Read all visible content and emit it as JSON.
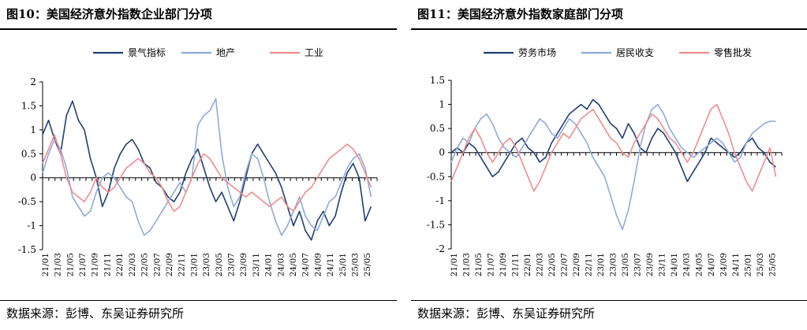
{
  "panels": [
    {
      "title": "图10：美国经济意外指数企业部门分项",
      "source": "数据来源：彭博、东吴证券研究所"
    },
    {
      "title": "图11：美国经济意外指数家庭部门分项",
      "source": "数据来源：彭博、东吴证券研究所"
    }
  ],
  "chart_data": [
    {
      "type": "line",
      "title": "",
      "xlabel": "",
      "ylabel": "",
      "ylim": [
        -1.5,
        2
      ],
      "yticks": [
        "2",
        "1.5",
        "1",
        "0.5",
        "0",
        "-0.5",
        "-1",
        "-1.5"
      ],
      "ytick_values": [
        2,
        1.5,
        1,
        0.5,
        0,
        -0.5,
        -1,
        -1.5
      ],
      "x_tick_labels": [
        "21/01",
        "21/03",
        "21/05",
        "21/07",
        "21/09",
        "21/11",
        "22/01",
        "22/03",
        "22/05",
        "22/07",
        "22/09",
        "22/11",
        "23/01",
        "23/03",
        "23/05",
        "23/07",
        "23/09",
        "23/11",
        "24/01",
        "24/03",
        "24/05",
        "24/07",
        "24/09",
        "24/11",
        "25/01",
        "25/03",
        "25/05"
      ],
      "x_range": [
        0,
        56
      ],
      "legend_position": "top-center",
      "grid": false,
      "series": [
        {
          "name": "景气指标",
          "color": "#1f3f73",
          "x": [
            0,
            1,
            2,
            3,
            4,
            5,
            6,
            7,
            8,
            9,
            10,
            11,
            12,
            13,
            14,
            15,
            16,
            17,
            18,
            19,
            20,
            21,
            22,
            23,
            24,
            25,
            26,
            27,
            28,
            29,
            30,
            31,
            32,
            33,
            34,
            35,
            36,
            37,
            38,
            39,
            40,
            41,
            42,
            43,
            44,
            45,
            46,
            47,
            48,
            49,
            50,
            51,
            52,
            53,
            54,
            55
          ],
          "y": [
            0.9,
            1.2,
            0.8,
            0.5,
            1.3,
            1.6,
            1.2,
            1.0,
            0.4,
            0.0,
            -0.6,
            -0.3,
            0.2,
            0.5,
            0.7,
            0.8,
            0.6,
            0.3,
            0.2,
            -0.1,
            -0.2,
            -0.4,
            -0.5,
            -0.3,
            0.1,
            0.4,
            0.6,
            0.2,
            -0.2,
            -0.5,
            -0.3,
            -0.6,
            -0.9,
            -0.5,
            0.0,
            0.5,
            0.7,
            0.5,
            0.3,
            0.1,
            -0.2,
            -0.6,
            -1.0,
            -0.7,
            -1.1,
            -1.3,
            -0.9,
            -0.7,
            -1.0,
            -0.8,
            -0.3,
            0.1,
            0.3,
            0.0,
            -0.9,
            -0.6
          ]
        },
        {
          "name": "地产",
          "color": "#8eaadc",
          "x": [
            0,
            1,
            2,
            3,
            4,
            5,
            6,
            7,
            8,
            9,
            10,
            11,
            12,
            13,
            14,
            15,
            16,
            17,
            18,
            19,
            20,
            21,
            22,
            23,
            24,
            25,
            26,
            27,
            28,
            29,
            30,
            31,
            32,
            33,
            34,
            35,
            36,
            37,
            38,
            39,
            40,
            41,
            42,
            43,
            44,
            45,
            46,
            47,
            48,
            49,
            50,
            51,
            52,
            53,
            54,
            55
          ],
          "y": [
            0.1,
            0.5,
            0.8,
            0.6,
            0.2,
            -0.4,
            -0.6,
            -0.8,
            -0.7,
            -0.3,
            0.0,
            0.1,
            0.0,
            -0.2,
            -0.4,
            -0.5,
            -0.9,
            -1.2,
            -1.1,
            -0.9,
            -0.7,
            -0.5,
            -0.3,
            -0.1,
            -0.3,
            0.0,
            1.1,
            1.3,
            1.4,
            1.65,
            0.5,
            -0.2,
            -0.6,
            -0.4,
            0.1,
            0.5,
            0.4,
            0.0,
            -0.5,
            -0.9,
            -1.2,
            -1.0,
            -0.7,
            -0.4,
            -0.8,
            -1.0,
            -1.1,
            -0.8,
            -0.5,
            -0.4,
            -0.1,
            0.2,
            0.4,
            0.5,
            0.2,
            -0.4
          ]
        },
        {
          "name": "工业",
          "color": "#f08c8c",
          "x": [
            0,
            1,
            2,
            3,
            4,
            5,
            6,
            7,
            8,
            9,
            10,
            11,
            12,
            13,
            14,
            15,
            16,
            17,
            18,
            19,
            20,
            21,
            22,
            23,
            24,
            25,
            26,
            27,
            28,
            29,
            30,
            31,
            32,
            33,
            34,
            35,
            36,
            37,
            38,
            39,
            40,
            41,
            42,
            43,
            44,
            45,
            46,
            47,
            48,
            49,
            50,
            51,
            52,
            53,
            54,
            55
          ],
          "y": [
            0.3,
            0.6,
            0.9,
            0.5,
            0.0,
            -0.3,
            -0.4,
            -0.5,
            -0.3,
            0.0,
            -0.2,
            -0.3,
            -0.2,
            0.0,
            0.2,
            0.3,
            0.4,
            0.3,
            0.1,
            0.0,
            -0.2,
            -0.5,
            -0.7,
            -0.6,
            -0.3,
            0.0,
            0.3,
            0.5,
            0.4,
            0.2,
            0.0,
            -0.1,
            -0.2,
            -0.3,
            -0.4,
            -0.3,
            -0.4,
            -0.5,
            -0.6,
            -0.5,
            -0.4,
            -0.6,
            -0.7,
            -0.5,
            -0.3,
            -0.2,
            0.0,
            0.2,
            0.4,
            0.5,
            0.6,
            0.7,
            0.6,
            0.4,
            0.1,
            -0.2
          ]
        }
      ]
    },
    {
      "type": "line",
      "title": "",
      "xlabel": "",
      "ylabel": "",
      "ylim": [
        -2,
        1.5
      ],
      "yticks": [
        "1.5",
        "1",
        "0.5",
        "0",
        "-0.5",
        "-1",
        "-1.5",
        "-2"
      ],
      "ytick_values": [
        1.5,
        1,
        0.5,
        0,
        -0.5,
        -1,
        -1.5,
        -2
      ],
      "x_tick_labels": [
        "21/01",
        "21/03",
        "21/05",
        "21/07",
        "21/09",
        "21/11",
        "22/01",
        "22/03",
        "22/05",
        "22/07",
        "22/09",
        "22/11",
        "23/01",
        "23/03",
        "23/05",
        "23/07",
        "23/09",
        "23/11",
        "24/01",
        "24/03",
        "24/05",
        "24/07",
        "24/09",
        "24/11",
        "25/01",
        "25/03",
        "25/05"
      ],
      "x_range": [
        0,
        56
      ],
      "legend_position": "top-center",
      "grid": false,
      "series": [
        {
          "name": "劳务市场",
          "color": "#1f3f73",
          "x": [
            0,
            1,
            2,
            3,
            4,
            5,
            6,
            7,
            8,
            9,
            10,
            11,
            12,
            13,
            14,
            15,
            16,
            17,
            18,
            19,
            20,
            21,
            22,
            23,
            24,
            25,
            26,
            27,
            28,
            29,
            30,
            31,
            32,
            33,
            34,
            35,
            36,
            37,
            38,
            39,
            40,
            41,
            42,
            43,
            44,
            45,
            46,
            47,
            48,
            49,
            50,
            51,
            52,
            53,
            54,
            55
          ],
          "y": [
            0.0,
            0.1,
            0.0,
            0.2,
            0.1,
            -0.1,
            -0.3,
            -0.5,
            -0.4,
            -0.2,
            0.0,
            0.2,
            0.3,
            0.1,
            0.0,
            -0.2,
            -0.1,
            0.2,
            0.4,
            0.6,
            0.8,
            0.9,
            1.0,
            0.9,
            1.1,
            1.0,
            0.8,
            0.6,
            0.5,
            0.3,
            0.6,
            0.4,
            0.1,
            0.0,
            0.3,
            0.5,
            0.4,
            0.2,
            0.0,
            -0.3,
            -0.6,
            -0.4,
            -0.2,
            0.0,
            0.3,
            0.2,
            0.1,
            0.0,
            -0.1,
            0.0,
            0.2,
            0.3,
            0.1,
            0.0,
            -0.2,
            -0.3
          ]
        },
        {
          "name": "居民收支",
          "color": "#8eaadc",
          "x": [
            0,
            1,
            2,
            3,
            4,
            5,
            6,
            7,
            8,
            9,
            10,
            11,
            12,
            13,
            14,
            15,
            16,
            17,
            18,
            19,
            20,
            21,
            22,
            23,
            24,
            25,
            26,
            27,
            28,
            29,
            30,
            31,
            32,
            33,
            34,
            35,
            36,
            37,
            38,
            39,
            40,
            41,
            42,
            43,
            44,
            45,
            46,
            47,
            48,
            49,
            50,
            51,
            52,
            53,
            54,
            55
          ],
          "y": [
            -0.2,
            0.1,
            0.3,
            0.2,
            0.5,
            0.7,
            0.8,
            0.6,
            0.3,
            0.1,
            0.0,
            -0.1,
            0.1,
            0.3,
            0.5,
            0.7,
            0.6,
            0.4,
            0.3,
            0.5,
            0.7,
            0.6,
            0.4,
            0.2,
            -0.1,
            -0.3,
            -0.5,
            -0.9,
            -1.3,
            -1.6,
            -1.2,
            -0.6,
            0.1,
            0.6,
            0.9,
            1.0,
            0.8,
            0.5,
            0.3,
            0.1,
            0.0,
            -0.1,
            0.0,
            0.1,
            0.2,
            0.3,
            0.2,
            0.0,
            -0.2,
            -0.1,
            0.2,
            0.4,
            0.5,
            0.6,
            0.65,
            0.65
          ]
        },
        {
          "name": "零售批发",
          "color": "#f08c8c",
          "x": [
            0,
            1,
            2,
            3,
            4,
            5,
            6,
            7,
            8,
            9,
            10,
            11,
            12,
            13,
            14,
            15,
            16,
            17,
            18,
            19,
            20,
            21,
            22,
            23,
            24,
            25,
            26,
            27,
            28,
            29,
            30,
            31,
            32,
            33,
            34,
            35,
            36,
            37,
            38,
            39,
            40,
            41,
            42,
            43,
            44,
            45,
            46,
            47,
            48,
            49,
            50,
            51,
            52,
            53,
            54,
            55
          ],
          "y": [
            -0.6,
            -0.3,
            0.0,
            0.3,
            0.5,
            0.3,
            0.0,
            -0.2,
            0.0,
            0.2,
            0.3,
            0.1,
            -0.2,
            -0.5,
            -0.8,
            -0.6,
            -0.3,
            0.0,
            0.2,
            0.4,
            0.3,
            0.5,
            0.7,
            0.8,
            0.9,
            0.7,
            0.5,
            0.3,
            0.2,
            0.0,
            -0.1,
            0.2,
            0.4,
            0.6,
            0.8,
            0.7,
            0.5,
            0.3,
            0.2,
            0.0,
            -0.2,
            0.0,
            0.3,
            0.6,
            0.9,
            1.0,
            0.7,
            0.4,
            0.0,
            -0.3,
            -0.6,
            -0.8,
            -0.5,
            -0.2,
            0.1,
            -0.5
          ]
        }
      ]
    }
  ]
}
